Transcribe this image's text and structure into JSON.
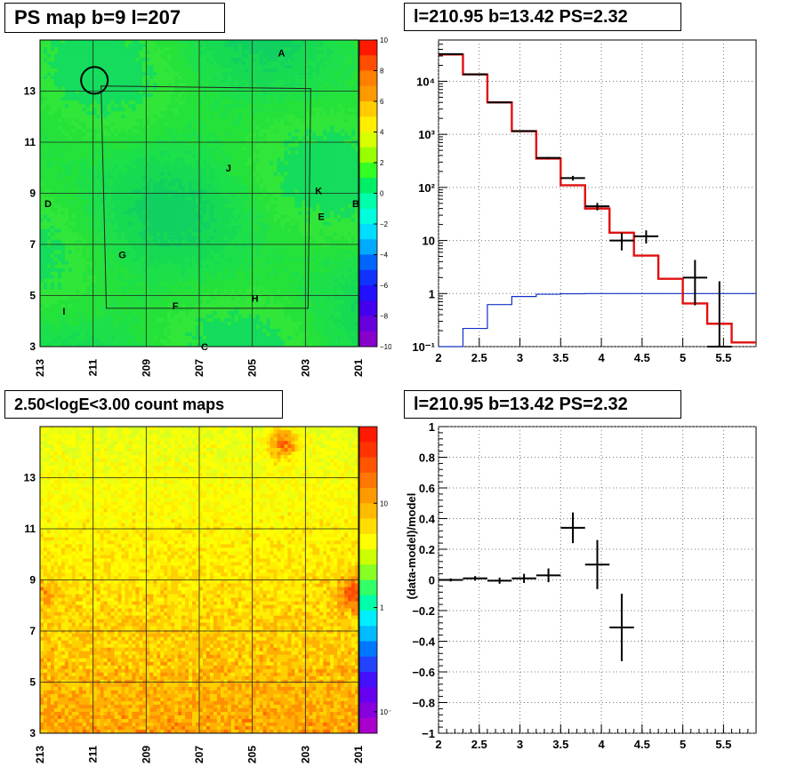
{
  "panels": {
    "ps_map": {
      "title": "PS map b=9 l=207",
      "colorbar_ticks": [
        "10",
        "8",
        "6",
        "4",
        "2",
        "0",
        "−2",
        "−4",
        "−6",
        "−8",
        "−10"
      ]
    },
    "count_map": {
      "title": "2.50<logE<3.00 count maps",
      "colorbar_ticks": [
        "10",
        "1",
        "10⁻¹"
      ]
    },
    "spectrum": {
      "title": "l=210.95 b=13.42 PS=2.32"
    },
    "residual": {
      "title": "l=210.95 b=13.42 PS=2.32"
    }
  },
  "sky": {
    "x_ticks": [
      "213",
      "211",
      "209",
      "207",
      "205",
      "203",
      "201"
    ],
    "y_ticks": [
      "13",
      "11",
      "9",
      "7",
      "5",
      "3"
    ],
    "sources": [
      "A",
      "J",
      "K",
      "D",
      "E",
      "B",
      "G",
      "H",
      "F",
      "I",
      "C"
    ]
  },
  "colors": {
    "map_green": "#1ce04a",
    "model_red": "#e01010",
    "background_blue": "#1030c8",
    "grid": "#222222"
  },
  "chart_data": [
    {
      "type": "heatmap",
      "title": "PS map b=9 l=207",
      "xlabel": "",
      "ylabel": "",
      "xlim": [
        213,
        201
      ],
      "ylim": [
        3,
        15
      ],
      "zlim": [
        -10,
        10
      ],
      "source_labels": [
        {
          "name": "A",
          "l": 203.9,
          "b": 14.5
        },
        {
          "name": "J",
          "l": 205.9,
          "b": 10.0
        },
        {
          "name": "K",
          "l": 202.5,
          "b": 9.1
        },
        {
          "name": "D",
          "l": 212.7,
          "b": 8.6
        },
        {
          "name": "E",
          "l": 202.4,
          "b": 8.1
        },
        {
          "name": "B",
          "l": 201.1,
          "b": 8.6
        },
        {
          "name": "G",
          "l": 209.9,
          "b": 6.6
        },
        {
          "name": "H",
          "l": 204.9,
          "b": 4.9
        },
        {
          "name": "F",
          "l": 207.9,
          "b": 4.6
        },
        {
          "name": "I",
          "l": 212.1,
          "b": 4.4
        },
        {
          "name": "C",
          "l": 206.8,
          "b": 3.0
        }
      ],
      "marker_circle": {
        "l": 210.95,
        "b": 13.42
      }
    },
    {
      "type": "heatmap",
      "title": "2.50<logE<3.00 count maps",
      "xlim": [
        213,
        201
      ],
      "ylim": [
        3,
        15
      ],
      "z_scale": "log",
      "zlim": [
        0.05,
        30
      ]
    },
    {
      "type": "line",
      "title": "l=210.95 b=13.42 PS=2.32",
      "xlim": [
        2,
        5.9
      ],
      "ylim": [
        0.1,
        60000
      ],
      "yscale": "log",
      "grid": true,
      "series": [
        {
          "bins": [
            [
              2,
              2.3
            ],
            [
              2.3,
              2.6
            ],
            [
              2.6,
              2.9
            ],
            [
              2.9,
              3.2
            ],
            [
              3.2,
              3.5
            ],
            [
              3.5,
              3.8
            ],
            [
              3.8,
              4.1
            ],
            [
              4.1,
              4.4
            ],
            [
              4.4,
              4.7
            ],
            [
              4.7,
              5.0
            ],
            [
              5.0,
              5.3
            ],
            [
              5.3,
              5.6
            ],
            [
              5.6,
              5.9
            ]
          ],
          "values": [
            32000,
            13500,
            4000,
            1150,
            350,
            110,
            40,
            14,
            5.2,
            1.9,
            0.65,
            0.27,
            0.12
          ]
        },
        {
          "bins": [
            [
              2,
              2.3
            ],
            [
              2.3,
              2.6
            ],
            [
              2.6,
              2.9
            ],
            [
              2.9,
              3.2
            ],
            [
              3.2,
              3.5
            ],
            [
              3.5,
              3.8
            ],
            [
              3.8,
              4.1
            ],
            [
              4.1,
              4.4
            ],
            [
              4.4,
              4.7
            ],
            [
              4.7,
              5.0
            ],
            [
              5.0,
              5.3
            ],
            [
              5.3,
              5.6
            ],
            [
              5.6,
              5.9
            ]
          ],
          "values": [
            0.08,
            0.22,
            0.62,
            0.88,
            0.97,
            0.99,
            1.0,
            1.0,
            1.0,
            1.0,
            1.0,
            1.0,
            1.0
          ]
        }
      ],
      "points": [
        {
          "x": 2.15,
          "y": 32500,
          "xerr": 0.15,
          "lo": 32000,
          "hi": 33000
        },
        {
          "x": 2.45,
          "y": 13500,
          "xerr": 0.15,
          "lo": 13300,
          "hi": 13700
        },
        {
          "x": 2.75,
          "y": 4000,
          "xerr": 0.15,
          "lo": 3950,
          "hi": 4050
        },
        {
          "x": 3.05,
          "y": 1150,
          "xerr": 0.15,
          "lo": 1120,
          "hi": 1180
        },
        {
          "x": 3.35,
          "y": 360,
          "xerr": 0.15,
          "lo": 345,
          "hi": 375
        },
        {
          "x": 3.65,
          "y": 150,
          "xerr": 0.15,
          "lo": 135,
          "hi": 165
        },
        {
          "x": 3.95,
          "y": 44,
          "xerr": 0.15,
          "lo": 37,
          "hi": 51
        },
        {
          "x": 4.25,
          "y": 10,
          "xerr": 0.15,
          "lo": 6.5,
          "hi": 14
        },
        {
          "x": 4.55,
          "y": 12,
          "xerr": 0.15,
          "lo": 8.8,
          "hi": 15.5
        },
        {
          "x": 5.15,
          "y": 2,
          "xerr": 0.15,
          "lo": 0.6,
          "hi": 4.3
        },
        {
          "x": 5.45,
          "y": 0.1,
          "xerr": 0.15,
          "lo": 0.1,
          "hi": 1.7
        }
      ],
      "x_ticks": [
        "2",
        "2.5",
        "3",
        "3.5",
        "4",
        "4.5",
        "5",
        "5.5"
      ],
      "y_ticks": [
        "10⁻¹",
        "1",
        "10",
        "10²",
        "10³",
        "10⁴"
      ]
    },
    {
      "type": "scatter",
      "title": "l=210.95 b=13.42 PS=2.32",
      "xlabel": "",
      "ylabel": "(data-model)/model",
      "xlim": [
        2,
        5.9
      ],
      "ylim": [
        -1,
        1
      ],
      "grid": true,
      "points": [
        {
          "x": 2.15,
          "y": 0.0,
          "xerr": 0.15,
          "err": 0.01
        },
        {
          "x": 2.45,
          "y": 0.01,
          "xerr": 0.15,
          "err": 0.015
        },
        {
          "x": 2.75,
          "y": -0.005,
          "xerr": 0.15,
          "err": 0.02
        },
        {
          "x": 3.05,
          "y": 0.01,
          "xerr": 0.15,
          "err": 0.03
        },
        {
          "x": 3.35,
          "y": 0.03,
          "xerr": 0.15,
          "err": 0.045
        },
        {
          "x": 3.65,
          "y": 0.34,
          "xerr": 0.15,
          "err": 0.1
        },
        {
          "x": 3.95,
          "y": 0.1,
          "xerr": 0.15,
          "err": 0.16
        },
        {
          "x": 4.25,
          "y": -0.31,
          "xerr": 0.15,
          "err": 0.22
        }
      ],
      "x_ticks": [
        "2",
        "2.5",
        "3",
        "3.5",
        "4",
        "4.5",
        "5",
        "5.5"
      ],
      "y_ticks": [
        "1",
        "0.8",
        "0.6",
        "0.4",
        "0.2",
        "0",
        "−0.2",
        "−0.4",
        "−0.6",
        "−0.8",
        "−1"
      ]
    }
  ]
}
